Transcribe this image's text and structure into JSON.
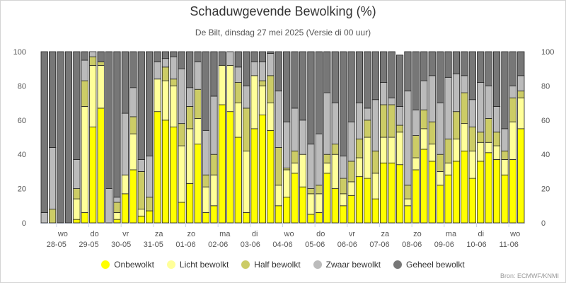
{
  "title": "Schaduwgevende Bewolking (%)",
  "subtitle": "De Bilt, dinsdag 27 mei 2025 (Versie di 00 uur)",
  "credit": "Bron: ECMWF/KNMI",
  "chart_data": {
    "type": "bar",
    "stacked": true,
    "ylim": [
      0,
      100
    ],
    "yticks": [
      0,
      20,
      40,
      60,
      80,
      100
    ],
    "y_axis_both_sides": true,
    "grid": false,
    "legend_position": "bottom",
    "colors": {
      "onbewolkt": "#ffff00",
      "licht": "#ffff99",
      "half": "#cccc66",
      "zwaar": "#bbbbbb",
      "geheel": "#777777"
    },
    "day_labels": [
      {
        "weekday": "wo",
        "date": "28-05"
      },
      {
        "weekday": "do",
        "date": "29-05"
      },
      {
        "weekday": "vr",
        "date": "30-05"
      },
      {
        "weekday": "za",
        "date": "31-05"
      },
      {
        "weekday": "zo",
        "date": "01-06"
      },
      {
        "weekday": "ma",
        "date": "02-06"
      },
      {
        "weekday": "di",
        "date": "03-06"
      },
      {
        "weekday": "wo",
        "date": "04-06"
      },
      {
        "weekday": "do",
        "date": "05-06"
      },
      {
        "weekday": "vr",
        "date": "06-06"
      },
      {
        "weekday": "za",
        "date": "07-06"
      },
      {
        "weekday": "zo",
        "date": "08-06"
      },
      {
        "weekday": "ma",
        "date": "09-06"
      },
      {
        "weekday": "di",
        "date": "10-06"
      },
      {
        "weekday": "wo",
        "date": "11-06"
      }
    ],
    "series": [
      {
        "name": "Onbewolkt",
        "key": "onbewolkt",
        "values": [
          0,
          0,
          0,
          0,
          2,
          6,
          56,
          67,
          0,
          2,
          17,
          31,
          4,
          7,
          65,
          60,
          56,
          12,
          23,
          46,
          6,
          10,
          69,
          65,
          50,
          6,
          55,
          63,
          54,
          10,
          15,
          29,
          21,
          5,
          6,
          29,
          20,
          10,
          16,
          27,
          26,
          14,
          35,
          35,
          34,
          10,
          31,
          43,
          36,
          22,
          28,
          36,
          42,
          26,
          36,
          41,
          37,
          28,
          37,
          55
        ]
      },
      {
        "name": "Licht bewolkt",
        "key": "licht",
        "values": [
          0,
          0,
          0,
          0,
          12,
          62,
          36,
          25,
          0,
          4,
          11,
          21,
          4,
          0,
          19,
          23,
          24,
          33,
          32,
          15,
          15,
          18,
          23,
          27,
          20,
          36,
          31,
          17,
          16,
          12,
          16,
          6,
          19,
          12,
          11,
          6,
          20,
          7,
          8,
          11,
          24,
          15,
          15,
          15,
          19,
          4,
          7,
          12,
          10,
          8,
          7,
          13,
          16,
          16,
          11,
          6,
          8,
          9,
          22,
          18
        ]
      },
      {
        "name": "Half bewolkt",
        "key": "half",
        "values": [
          0,
          8,
          0,
          0,
          6,
          15,
          5,
          2,
          0,
          6,
          0,
          10,
          22,
          8,
          0,
          8,
          4,
          13,
          13,
          17,
          7,
          12,
          0,
          0,
          12,
          25,
          0,
          3,
          16,
          22,
          1,
          7,
          0,
          3,
          5,
          5,
          6,
          9,
          12,
          11,
          10,
          13,
          19,
          19,
          4,
          8,
          13,
          11,
          13,
          10,
          14,
          16,
          18,
          14,
          6,
          14,
          8,
          5,
          14,
          4
        ]
      },
      {
        "name": "Zwaar bewolkt",
        "key": "zwaar",
        "values": [
          6,
          36,
          0,
          0,
          17,
          12,
          3,
          0,
          20,
          3,
          36,
          17,
          7,
          24,
          10,
          5,
          13,
          32,
          11,
          16,
          26,
          34,
          0,
          8,
          9,
          13,
          8,
          11,
          13,
          33,
          27,
          25,
          20,
          26,
          30,
          36,
          24,
          13,
          23,
          21,
          7,
          30,
          13,
          4,
          11,
          55,
          15,
          17,
          27,
          30,
          36,
          22,
          10,
          16,
          29,
          19,
          15,
          13,
          7,
          9
        ]
      },
      {
        "name": "Geheel bewolkt",
        "key": "geheel",
        "values": [
          94,
          56,
          100,
          100,
          63,
          5,
          0,
          6,
          80,
          85,
          36,
          21,
          63,
          61,
          6,
          4,
          3,
          10,
          21,
          6,
          46,
          26,
          8,
          0,
          9,
          20,
          6,
          6,
          1,
          23,
          41,
          33,
          40,
          54,
          48,
          24,
          30,
          61,
          41,
          30,
          33,
          28,
          18,
          27,
          30,
          23,
          34,
          17,
          14,
          30,
          15,
          13,
          14,
          28,
          18,
          20,
          32,
          45,
          20,
          14
        ]
      }
    ]
  }
}
